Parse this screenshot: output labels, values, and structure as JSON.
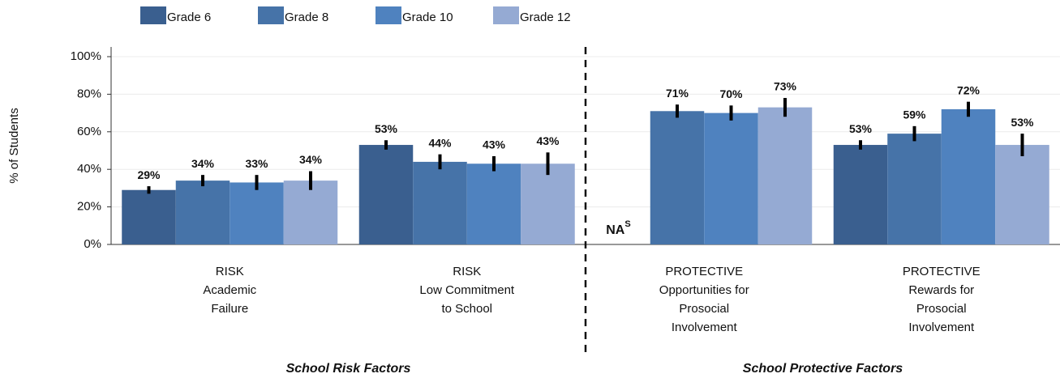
{
  "chart_data": {
    "type": "bar",
    "y_label": "% of Students",
    "categories": [
      [
        "RISK",
        "Academic",
        "Failure"
      ],
      [
        "RISK",
        "Low Commitment",
        "to School"
      ],
      [
        "PROTECTIVE",
        "Opportunities for",
        "Prosocial",
        "Involvement"
      ],
      [
        "PROTECTIVE",
        "Rewards for",
        "Prosocial",
        "Involvement"
      ]
    ],
    "groups": [
      {
        "label": "School Risk Factors",
        "categories": [
          0,
          1
        ]
      },
      {
        "label": "School Protective Factors",
        "categories": [
          2,
          3
        ]
      }
    ],
    "series": [
      {
        "name": "Grade 6",
        "color": "#3a5f8f",
        "values": [
          29,
          53,
          null,
          53
        ],
        "errors": [
          2,
          2.5,
          null,
          2.5
        ],
        "value_labels": [
          "29%",
          "53%",
          null,
          "53%"
        ]
      },
      {
        "name": "Grade 8",
        "color": "#4673a8",
        "values": [
          34,
          44,
          71,
          59
        ],
        "errors": [
          3,
          4,
          3.5,
          4
        ],
        "value_labels": [
          "34%",
          "44%",
          "71%",
          "59%"
        ]
      },
      {
        "name": "Grade 10",
        "color": "#4f82bf",
        "values": [
          33,
          43,
          70,
          72
        ],
        "errors": [
          4,
          4,
          4,
          4
        ],
        "value_labels": [
          "33%",
          "43%",
          "70%",
          "72%"
        ]
      },
      {
        "name": "Grade 12",
        "color": "#95aad3",
        "values": [
          34,
          43,
          73,
          53
        ],
        "errors": [
          5,
          6,
          5,
          6
        ],
        "value_labels": [
          "34%",
          "43%",
          "73%",
          "53%"
        ]
      }
    ],
    "na_label": {
      "text": "NA",
      "sup": "S",
      "series": 0,
      "category": 2
    },
    "ylim": [
      0,
      100
    ],
    "yticks": [
      {
        "value": 0,
        "label": "0%"
      },
      {
        "value": 20,
        "label": "20%"
      },
      {
        "value": 40,
        "label": "40%"
      },
      {
        "value": 60,
        "label": "60%"
      },
      {
        "value": 80,
        "label": "80%"
      },
      {
        "value": 100,
        "label": "100%"
      }
    ],
    "grid": true
  }
}
